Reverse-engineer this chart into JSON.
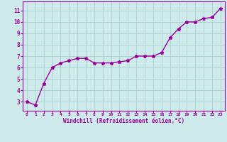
{
  "x": [
    0,
    1,
    2,
    3,
    4,
    5,
    6,
    7,
    8,
    9,
    10,
    11,
    12,
    13,
    14,
    15,
    16,
    17,
    18,
    19,
    20,
    21,
    22,
    23
  ],
  "y": [
    3.0,
    2.7,
    4.6,
    6.0,
    6.4,
    6.6,
    6.8,
    6.8,
    6.4,
    6.4,
    6.4,
    6.5,
    6.6,
    7.0,
    7.0,
    7.0,
    7.3,
    8.6,
    9.4,
    10.0,
    10.0,
    10.3,
    10.4,
    11.2
  ],
  "xlim": [
    -0.5,
    23.5
  ],
  "ylim": [
    2.2,
    11.8
  ],
  "yticks": [
    3,
    4,
    5,
    6,
    7,
    8,
    9,
    10,
    11
  ],
  "xticks": [
    0,
    1,
    2,
    3,
    4,
    5,
    6,
    7,
    8,
    9,
    10,
    11,
    12,
    13,
    14,
    15,
    16,
    17,
    18,
    19,
    20,
    21,
    22,
    23
  ],
  "xlabel": "Windchill (Refroidissement éolien,°C)",
  "line_color": "#990099",
  "marker": "*",
  "background_color": "#ceeaea",
  "grid_color": "#aad4d4",
  "axis_color": "#990099",
  "tick_label_color": "#990099",
  "xlabel_color": "#990099",
  "marker_size": 3.5,
  "line_width": 1.0
}
